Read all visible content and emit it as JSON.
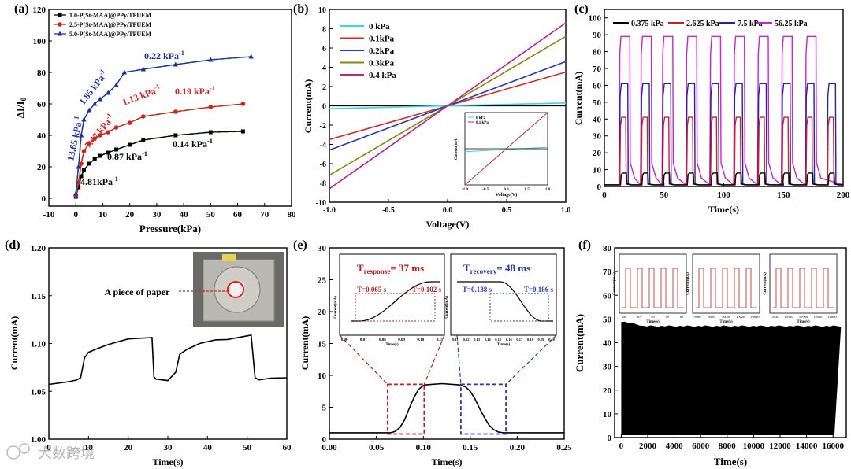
{
  "watermark": "大数跨境",
  "colors": {
    "a_series": [
      "#000000",
      "#d6201f",
      "#1f2fa8"
    ],
    "fit": "#4cc35a",
    "b_series": [
      "#3dd6e8",
      "#cf2a2a",
      "#2a3ab5",
      "#7f8a0a",
      "#c21e8c"
    ],
    "c_series": [
      "#000000",
      "#d11f1f",
      "#1c26a6",
      "#d21ed8"
    ]
  },
  "chart_data": [
    {
      "panel": "(a)",
      "type": "line",
      "xlabel": "Pressure(kPa)",
      "ylabel": "ΔI/I0",
      "xlim": [
        -10,
        80
      ],
      "ylim": [
        -5,
        120
      ],
      "xticks": [
        "-10",
        "0",
        "10",
        "20",
        "30",
        "40",
        "50",
        "60",
        "70",
        "80"
      ],
      "yticks": [
        "0",
        "20",
        "40",
        "60",
        "80",
        "100",
        "120"
      ],
      "legend_position": "top-left",
      "series": [
        {
          "name": "1.0-P(St-MAA)@PPy/TPUEM",
          "marker": "square",
          "x": [
            0,
            1,
            2,
            3,
            5,
            7,
            9,
            12,
            15,
            20,
            25,
            37,
            50,
            62
          ],
          "y": [
            1,
            7,
            14,
            18,
            22,
            25,
            27,
            29,
            31,
            34,
            37,
            40,
            42,
            42.5
          ]
        },
        {
          "name": "2.5-P(St-MAA)@PPy/TPUEM",
          "marker": "circle",
          "x": [
            0,
            1,
            2,
            3,
            5,
            7,
            9,
            12,
            15,
            20,
            25,
            37,
            50,
            62
          ],
          "y": [
            2,
            10,
            22,
            30,
            35,
            38,
            40,
            42,
            45,
            48,
            52,
            55,
            58,
            60
          ]
        },
        {
          "name": "5.0-P(St-MAA)@PPy/TPUEM",
          "marker": "triangle",
          "x": [
            0,
            1,
            2,
            3,
            5,
            7,
            9,
            12,
            15,
            18,
            25,
            37,
            50,
            65
          ],
          "y": [
            3,
            20,
            40,
            50,
            56,
            60,
            63,
            67,
            72,
            80,
            82,
            85,
            88,
            90
          ]
        }
      ],
      "annotations": [
        {
          "text": "1.85 kPa",
          "sup": "-1",
          "color": "blue"
        },
        {
          "text": "0.22 kPa",
          "sup": "-1",
          "color": "blue"
        },
        {
          "text": "13.65 kPa",
          "sup": "-1",
          "color": "blue"
        },
        {
          "text": "7.47 kPa",
          "sup": "-1",
          "color": "red"
        },
        {
          "text": "1.13 kPa",
          "sup": "-1",
          "color": "red"
        },
        {
          "text": "0.19 kPa",
          "sup": "-1",
          "color": "red"
        },
        {
          "text": "0.87 kPa",
          "sup": "-1",
          "color": "black"
        },
        {
          "text": "0.14 kPa",
          "sup": "-1",
          "color": "black"
        },
        {
          "text": "4.81kPa",
          "sup": "-1",
          "color": "black"
        }
      ]
    },
    {
      "panel": "(b)",
      "type": "line",
      "xlabel": "Voltage(V)",
      "ylabel": "Current(mA)",
      "xlim": [
        -1.0,
        1.0
      ],
      "ylim": [
        -10,
        10
      ],
      "xticks": [
        "-1.0",
        "-0.5",
        "0.0",
        "0.5",
        "1.0"
      ],
      "yticks": [
        "-10",
        "-8",
        "-6",
        "-4",
        "-2",
        "0",
        "2",
        "4",
        "6",
        "8",
        "10"
      ],
      "series": [
        {
          "name": "0 kPa",
          "slope": 0.3
        },
        {
          "name": "0.1kPa",
          "slope": 3.5
        },
        {
          "name": "0.2kPa",
          "slope": 4.6
        },
        {
          "name": "0.3kPa",
          "slope": 7.2
        },
        {
          "name": "0.4 kPa",
          "slope": 8.6
        }
      ],
      "inset": {
        "xlabel": "Voltage(V)",
        "ylabel": "Current(mA)",
        "xticks": [
          "-1.0",
          "-0.5",
          "0.0",
          "0.5",
          "1.0"
        ],
        "series": [
          {
            "name": "0 kPa"
          },
          {
            "name": "0.1 kPa"
          }
        ]
      }
    },
    {
      "panel": "(c)",
      "type": "line",
      "xlabel": "Time(s)",
      "ylabel": "Current(mA)",
      "xlim": [
        0,
        200
      ],
      "ylim": [
        0,
        105
      ],
      "xticks": [
        "0",
        "50",
        "100",
        "150",
        "200"
      ],
      "yticks": [
        "0",
        "10",
        "20",
        "30",
        "40",
        "50",
        "60",
        "70",
        "80",
        "90",
        "100"
      ],
      "series": [
        {
          "name": "0.375 kPa",
          "peak": 8
        },
        {
          "name": "2.625 kPa",
          "peak": 41
        },
        {
          "name": "7.5 kPa",
          "peak": 61
        },
        {
          "name": "56.25 kPa",
          "peak": 89
        }
      ],
      "cycle_starts": [
        12,
        30,
        48,
        68,
        88,
        108,
        128,
        148,
        168,
        186
      ]
    },
    {
      "panel": "(d)",
      "type": "line",
      "xlabel": "Time(s)",
      "ylabel": "Current(mA)",
      "xlim": [
        0,
        60
      ],
      "ylim": [
        1.0,
        1.2
      ],
      "xticks": [
        "0",
        "10",
        "20",
        "30",
        "40",
        "50",
        "60"
      ],
      "yticks": [
        "1.00",
        "1.05",
        "1.10",
        "1.15",
        "1.20"
      ],
      "x": [
        0,
        5,
        7,
        8,
        9,
        10,
        12,
        15,
        20,
        26,
        26.5,
        27,
        30,
        32,
        33,
        35,
        38,
        42,
        45,
        50,
        51,
        52,
        53,
        56,
        60
      ],
      "y": [
        1.058,
        1.06,
        1.061,
        1.065,
        1.085,
        1.09,
        1.095,
        1.099,
        1.104,
        1.107,
        1.065,
        1.062,
        1.062,
        1.07,
        1.088,
        1.095,
        1.1,
        1.103,
        1.105,
        1.108,
        1.108,
        1.065,
        1.062,
        1.063,
        1.065
      ],
      "photo_label": "A piece of paper"
    },
    {
      "panel": "(e)",
      "type": "line",
      "xlabel": "Time(s)",
      "ylabel": "Current(mA)",
      "xlim": [
        0,
        0.25
      ],
      "ylim": [
        0,
        30
      ],
      "xticks": [
        "0.00",
        "0.05",
        "0.10",
        "0.15",
        "0.20",
        "0.25"
      ],
      "yticks": [
        "0",
        "5",
        "10",
        "15",
        "20",
        "25",
        "30"
      ],
      "x": [
        0,
        0.065,
        0.07,
        0.075,
        0.08,
        0.085,
        0.09,
        0.095,
        0.1,
        0.102,
        0.12,
        0.138,
        0.145,
        0.15,
        0.155,
        0.16,
        0.165,
        0.17,
        0.175,
        0.18,
        0.186,
        0.25
      ],
      "y": [
        1.0,
        1.0,
        1.2,
        1.8,
        3.0,
        4.8,
        6.5,
        7.8,
        8.4,
        8.5,
        8.7,
        8.5,
        8.2,
        7.5,
        6.3,
        4.8,
        3.4,
        2.2,
        1.5,
        1.1,
        1.0,
        1.0
      ],
      "t_response": "T",
      "t_response_sub": "response",
      "t_response_val": "= 37 ms",
      "t_recovery": "T",
      "t_recovery_sub": "recovery",
      "t_recovery_val": "= 48 ms",
      "inset_left": {
        "t1": "T=0.065 s",
        "t2": "T=0.102 s",
        "xticks": [
          "0.06",
          "0.07",
          "0.08",
          "0.09",
          "0.10",
          "0.11"
        ],
        "xlabel": "Time(s)",
        "ylabel": "Current(mA)"
      },
      "inset_right": {
        "t1": "T=0.138 s",
        "t2": "T=0.186 s",
        "xticks": [
          "0.11",
          "0.12",
          "0.13",
          "0.14",
          "0.15",
          "0.16",
          "0.17",
          "0.18",
          "0.19",
          "0.20"
        ],
        "xlabel": "Time(s)",
        "ylabel": "Current(mA)"
      }
    },
    {
      "panel": "(f)",
      "type": "area",
      "xlabel": "Time(s)",
      "ylabel": "Current(mA)",
      "xlim": [
        -500,
        17000
      ],
      "ylim": [
        0,
        80
      ],
      "xticks": [
        "0",
        "2000",
        "4000",
        "6000",
        "8000",
        "10000",
        "12000",
        "14000",
        "16000"
      ],
      "yticks": [
        "0",
        "10",
        "20",
        "30",
        "40",
        "50",
        "60",
        "70",
        "80"
      ],
      "band_top": 47,
      "band_bottom": 1,
      "insets": [
        {
          "xticks": [
            "20",
            "30",
            "40",
            "50",
            "60"
          ]
        },
        {
          "xticks": [
            "9960",
            "9980",
            "10000",
            "10020",
            "10040"
          ]
        },
        {
          "xticks": [
            "15920",
            "15940",
            "15960",
            "15980",
            "16000"
          ]
        }
      ]
    }
  ]
}
